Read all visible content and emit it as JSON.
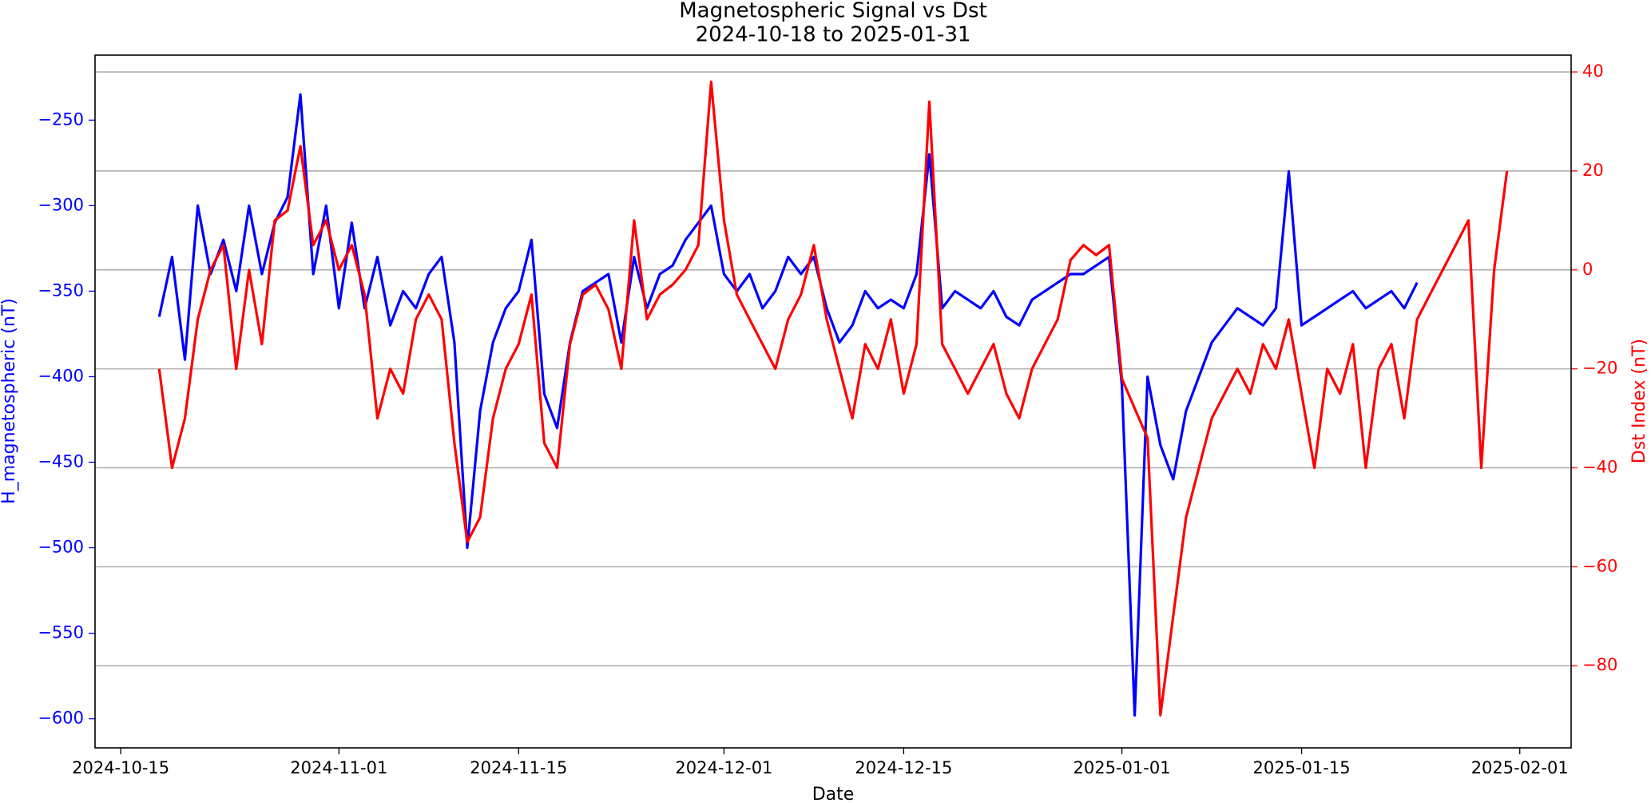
{
  "chart_data": {
    "type": "line",
    "title": "Magnetospheric Signal vs Dst",
    "subtitle": "2024-10-18 to 2025-01-31",
    "xlabel": "Date",
    "ylabel": "H_magnetospheric (nT)",
    "y2label": "Dst Index (nT)",
    "x": [
      "2024-10-18",
      "2024-10-19",
      "2024-10-20",
      "2024-10-21",
      "2024-10-22",
      "2024-10-23",
      "2024-10-24",
      "2024-10-25",
      "2024-10-26",
      "2024-10-27",
      "2024-10-28",
      "2024-10-29",
      "2024-10-30",
      "2024-10-31",
      "2024-11-01",
      "2024-11-02",
      "2024-11-03",
      "2024-11-04",
      "2024-11-05",
      "2024-11-06",
      "2024-11-07",
      "2024-11-08",
      "2024-11-09",
      "2024-11-10",
      "2024-11-11",
      "2024-11-12",
      "2024-11-13",
      "2024-11-14",
      "2024-11-15",
      "2024-11-16",
      "2024-11-17",
      "2024-11-18",
      "2024-11-19",
      "2024-11-20",
      "2024-11-21",
      "2024-11-22",
      "2024-11-23",
      "2024-11-24",
      "2024-11-25",
      "2024-11-26",
      "2024-11-27",
      "2024-11-28",
      "2024-11-29",
      "2024-11-30",
      "2024-12-01",
      "2024-12-02",
      "2024-12-03",
      "2024-12-04",
      "2024-12-05",
      "2024-12-06",
      "2024-12-07",
      "2024-12-08",
      "2024-12-09",
      "2024-12-10",
      "2024-12-11",
      "2024-12-12",
      "2024-12-13",
      "2024-12-14",
      "2024-12-15",
      "2024-12-16",
      "2024-12-17",
      "2024-12-18",
      "2024-12-19",
      "2024-12-20",
      "2024-12-21",
      "2024-12-22",
      "2024-12-23",
      "2024-12-24",
      "2024-12-25",
      "2024-12-26",
      "2024-12-27",
      "2024-12-28",
      "2024-12-29",
      "2024-12-30",
      "2024-12-31",
      "2025-01-01",
      "2025-01-02",
      "2025-01-03",
      "2025-01-04",
      "2025-01-05",
      "2025-01-06",
      "2025-01-07",
      "2025-01-08",
      "2025-01-09",
      "2025-01-10",
      "2025-01-11",
      "2025-01-12",
      "2025-01-13",
      "2025-01-14",
      "2025-01-15",
      "2025-01-16",
      "2025-01-17",
      "2025-01-18",
      "2025-01-19",
      "2025-01-20",
      "2025-01-21",
      "2025-01-22",
      "2025-01-23",
      "2025-01-24",
      "2025-01-25",
      "2025-01-26",
      "2025-01-27",
      "2025-01-28",
      "2025-01-29",
      "2025-01-30",
      "2025-01-31"
    ],
    "series": [
      {
        "name": "H_magnetospheric",
        "color": "#0000ff",
        "axis": "y",
        "values": [
          -365,
          -330,
          -390,
          -300,
          -340,
          -320,
          -350,
          -300,
          -340,
          -310,
          -295,
          -235,
          -340,
          -300,
          -360,
          -310,
          -360,
          -330,
          -370,
          -350,
          -360,
          -340,
          -330,
          -380,
          -500,
          -420,
          -380,
          -360,
          -350,
          -320,
          -410,
          -430,
          -380,
          -350,
          -345,
          -340,
          -380,
          -330,
          -360,
          -340,
          -335,
          -320,
          -310,
          -300,
          -340,
          -350,
          -340,
          -360,
          -350,
          -330,
          -340,
          -330,
          -360,
          -380,
          -370,
          -350,
          -360,
          -355,
          -360,
          -340,
          -270,
          -360,
          -350,
          -355,
          -360,
          -350,
          -365,
          -370,
          -355,
          -350,
          -345,
          -340,
          -340,
          -335,
          -330,
          -405,
          -598,
          -400,
          -440,
          -460,
          -420,
          -400,
          -380,
          -370,
          -360,
          -365,
          -370,
          -360,
          -280,
          -370,
          -365,
          -360,
          -355,
          -350,
          -360,
          -355,
          -350,
          -360,
          -345,
          null,
          null,
          null,
          null,
          null,
          null,
          null
        ]
      },
      {
        "name": "Dst",
        "color": "#ff0000",
        "axis": "y2",
        "values": [
          -20,
          -40,
          -30,
          -10,
          0,
          5,
          -20,
          0,
          -15,
          10,
          12,
          25,
          5,
          10,
          0,
          5,
          -5,
          -30,
          -20,
          -25,
          -10,
          -5,
          -10,
          -35,
          -55,
          -50,
          -30,
          -20,
          -15,
          -5,
          -35,
          -40,
          -15,
          -5,
          -3,
          -8,
          -20,
          10,
          -10,
          -5,
          -3,
          0,
          5,
          38,
          10,
          -5,
          -10,
          -15,
          -20,
          -10,
          -5,
          5,
          -10,
          -20,
          -30,
          -15,
          -20,
          -10,
          -25,
          -15,
          34,
          -15,
          -20,
          -25,
          -20,
          -15,
          -25,
          -30,
          -20,
          -15,
          -10,
          2,
          5,
          3,
          5,
          -22,
          -28,
          -34,
          -90,
          -70,
          -50,
          -40,
          -30,
          -25,
          -20,
          -25,
          -15,
          -20,
          -10,
          -25,
          -40,
          -20,
          -25,
          -15,
          -40,
          -20,
          -15,
          -30,
          -10,
          -5,
          0,
          5,
          10,
          -40,
          0,
          20
        ]
      }
    ],
    "xlim": [
      "2024-10-13",
      "2025-02-05"
    ],
    "xticks": [
      "2024-10-15",
      "2024-11-01",
      "2024-11-15",
      "2024-12-01",
      "2024-12-15",
      "2025-01-01",
      "2025-01-15",
      "2025-02-01"
    ],
    "ylim": [
      -617,
      -212
    ],
    "yticks": [
      {
        "value": -250,
        "label": "−250"
      },
      {
        "value": -300,
        "label": "−300"
      },
      {
        "value": -350,
        "label": "−350"
      },
      {
        "value": -400,
        "label": "−400"
      },
      {
        "value": -450,
        "label": "−450"
      },
      {
        "value": -500,
        "label": "−500"
      },
      {
        "value": -550,
        "label": "−550"
      },
      {
        "value": -600,
        "label": "−600"
      }
    ],
    "y2lim": [
      -96.6,
      43.4
    ],
    "y2ticks": [
      40,
      20,
      0,
      {
        "value": -20,
        "label": "−20"
      },
      {
        "value": -40,
        "label": "−40"
      },
      {
        "value": -60,
        "label": "−60"
      },
      {
        "value": -80,
        "label": "−80"
      }
    ],
    "grid": "y2"
  }
}
